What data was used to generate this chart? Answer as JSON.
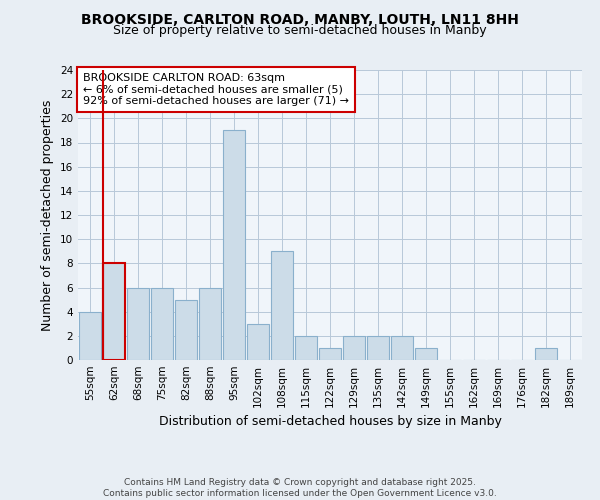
{
  "title": "BROOKSIDE, CARLTON ROAD, MANBY, LOUTH, LN11 8HH",
  "subtitle": "Size of property relative to semi-detached houses in Manby",
  "xlabel": "Distribution of semi-detached houses by size in Manby",
  "ylabel": "Number of semi-detached properties",
  "categories": [
    "55sqm",
    "62sqm",
    "68sqm",
    "75sqm",
    "82sqm",
    "88sqm",
    "95sqm",
    "102sqm",
    "108sqm",
    "115sqm",
    "122sqm",
    "129sqm",
    "135sqm",
    "142sqm",
    "149sqm",
    "155sqm",
    "162sqm",
    "169sqm",
    "176sqm",
    "182sqm",
    "189sqm"
  ],
  "values": [
    4,
    8,
    6,
    6,
    5,
    6,
    19,
    3,
    9,
    2,
    1,
    2,
    2,
    2,
    1,
    0,
    0,
    0,
    0,
    1,
    0
  ],
  "bar_color": "#ccdce8",
  "bar_edge_color": "#8ab0cc",
  "highlight_index": 1,
  "highlight_edge_color": "#cc0000",
  "annotation_title": "BROOKSIDE CARLTON ROAD: 63sqm",
  "annotation_line1": "← 6% of semi-detached houses are smaller (5)",
  "annotation_line2": "92% of semi-detached houses are larger (71) →",
  "ylim": [
    0,
    24
  ],
  "yticks": [
    0,
    2,
    4,
    6,
    8,
    10,
    12,
    14,
    16,
    18,
    20,
    22,
    24
  ],
  "footer": "Contains HM Land Registry data © Crown copyright and database right 2025.\nContains public sector information licensed under the Open Government Licence v3.0.",
  "background_color": "#e8eef4",
  "plot_background": "#f0f5fa",
  "title_fontsize": 10,
  "subtitle_fontsize": 9,
  "axis_label_fontsize": 9,
  "tick_fontsize": 7.5,
  "annotation_fontsize": 8,
  "footer_fontsize": 6.5
}
